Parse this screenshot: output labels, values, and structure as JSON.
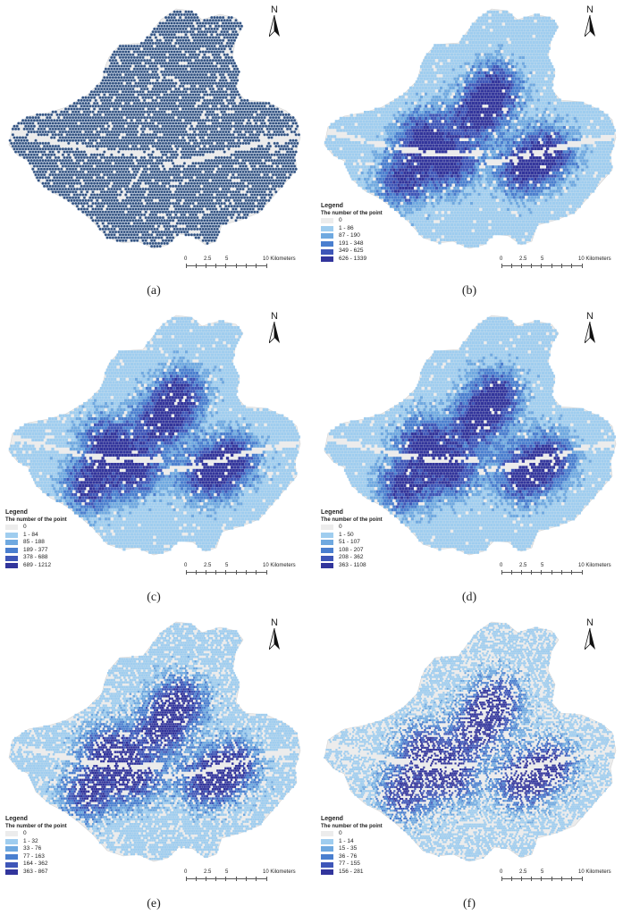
{
  "north_label": "N",
  "legend_title": "Legend",
  "legend_subtitle": "The number of the point",
  "scale_labels": [
    "0",
    "2.5",
    "5",
    "10 Kilometers"
  ],
  "colors": {
    "boundary": "#ececec",
    "boundary_stroke": "#d4d4d4",
    "classes": [
      "#ececec",
      "#9fcdef",
      "#6fa9e0",
      "#4a7fcf",
      "#3e56b8",
      "#32359c"
    ],
    "point": "#2f4e7c"
  },
  "panels": [
    {
      "caption": "(a)",
      "has_legend": false,
      "has_scale": true,
      "style": "points",
      "classes": []
    },
    {
      "caption": "(b)",
      "has_legend": true,
      "has_scale": true,
      "style": "hex",
      "classes": [
        "0",
        "1 - 86",
        "87 - 190",
        "191 - 348",
        "349 - 625",
        "626 - 1339"
      ]
    },
    {
      "caption": "(c)",
      "has_legend": true,
      "has_scale": true,
      "style": "hex",
      "classes": [
        "0",
        "1 - 84",
        "85 - 188",
        "189 - 377",
        "378 - 688",
        "689 - 1212"
      ]
    },
    {
      "caption": "(d)",
      "has_legend": true,
      "has_scale": true,
      "style": "hex",
      "classes": [
        "0",
        "1 - 50",
        "51 - 107",
        "108 - 207",
        "208 - 362",
        "363 - 1108"
      ]
    },
    {
      "caption": "(e)",
      "has_legend": true,
      "has_scale": true,
      "style": "hex-fine",
      "classes": [
        "0",
        "1 - 32",
        "33 - 76",
        "77 - 163",
        "164 - 362",
        "363 - 867"
      ]
    },
    {
      "caption": "(f)",
      "has_legend": true,
      "has_scale": true,
      "style": "hex-finer",
      "classes": [
        "0",
        "1 - 14",
        "15 - 35",
        "36 - 76",
        "77 - 155",
        "156 - 281"
      ]
    }
  ]
}
